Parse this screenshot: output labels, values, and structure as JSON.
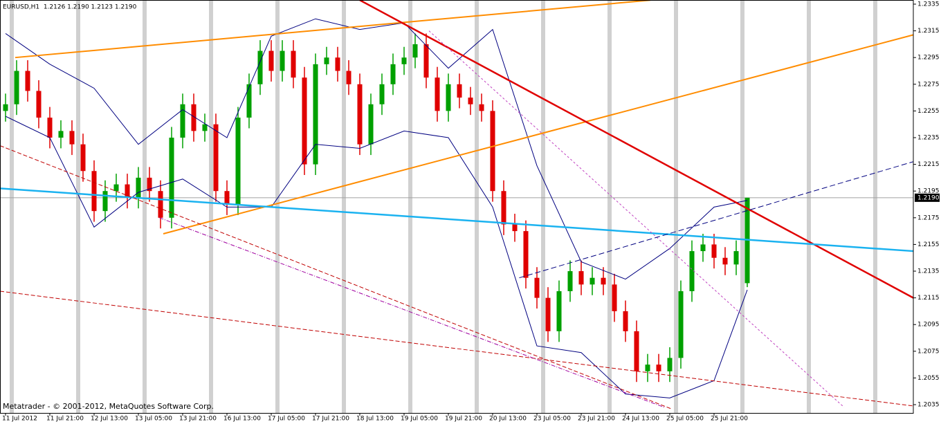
{
  "chart_data": {
    "type": "candlestick",
    "title": "EURUSD,H1  1.2126 1.2190 1.2123 1.2190",
    "watermark": "Metatrader - © 2001-2012, MetaQuotes Software Corp.",
    "up_color": "#00a000",
    "down_color": "#e00000",
    "open": [
      1.2255,
      1.226,
      1.2285,
      1.227,
      1.225,
      1.2235,
      1.224,
      1.223,
      1.221,
      1.218,
      1.2195,
      1.22,
      1.219,
      1.2205,
      1.2195,
      1.2175,
      1.2235,
      1.226,
      1.224,
      1.2245,
      1.2195,
      1.2185,
      1.225,
      1.2275,
      1.23,
      1.2285,
      1.23,
      1.228,
      1.2215,
      1.229,
      1.2295,
      1.2285,
      1.2275,
      1.223,
      1.226,
      1.2275,
      1.229,
      1.2295,
      1.2305,
      1.228,
      1.2255,
      1.2275,
      1.2265,
      1.226,
      1.2255,
      1.2195,
      1.217,
      1.2165,
      1.213,
      1.2115,
      1.209,
      1.212,
      1.2135,
      1.2125,
      1.213,
      1.2125,
      1.2105,
      1.209,
      1.206,
      1.2065,
      1.206,
      1.207,
      1.212,
      1.215,
      1.2155,
      1.2145,
      1.214,
      1.2126
    ],
    "high": [
      1.2268,
      1.2293,
      1.2293,
      1.2278,
      1.2258,
      1.2248,
      1.2248,
      1.2238,
      1.2218,
      1.2203,
      1.2208,
      1.2208,
      1.2213,
      1.2213,
      1.2203,
      1.2243,
      1.2268,
      1.2268,
      1.2253,
      1.2253,
      1.2203,
      1.2258,
      1.2283,
      1.2308,
      1.2308,
      1.2308,
      1.2308,
      1.2288,
      1.2298,
      1.2303,
      1.2303,
      1.2293,
      1.2283,
      1.2268,
      1.2283,
      1.2298,
      1.2303,
      1.2313,
      1.2313,
      1.2288,
      1.2283,
      1.2283,
      1.2273,
      1.2268,
      1.2263,
      1.2203,
      1.2178,
      1.2173,
      1.2138,
      1.2123,
      1.2128,
      1.2143,
      1.2143,
      1.2138,
      1.2138,
      1.2133,
      1.2113,
      1.2098,
      1.2073,
      1.2073,
      1.2078,
      1.2128,
      1.2158,
      1.2163,
      1.2163,
      1.2153,
      1.2158,
      1.219
    ],
    "low": [
      1.2247,
      1.2252,
      1.2262,
      1.2242,
      1.2227,
      1.2227,
      1.2222,
      1.2202,
      1.2172,
      1.2172,
      1.2187,
      1.2182,
      1.2182,
      1.2187,
      1.2167,
      1.2167,
      1.2227,
      1.2232,
      1.2232,
      1.2187,
      1.2177,
      1.2177,
      1.2242,
      1.2267,
      1.2277,
      1.2277,
      1.2272,
      1.2207,
      1.2207,
      1.2282,
      1.2277,
      1.2267,
      1.2222,
      1.2222,
      1.2252,
      1.2267,
      1.2282,
      1.2287,
      1.2272,
      1.2247,
      1.2247,
      1.2257,
      1.2252,
      1.2247,
      1.2187,
      1.2162,
      1.2157,
      1.2122,
      1.2107,
      1.2082,
      1.2082,
      1.2112,
      1.2117,
      1.2117,
      1.2117,
      1.2097,
      1.2082,
      1.2052,
      1.2052,
      1.2052,
      1.2052,
      1.2062,
      1.2112,
      1.2142,
      1.2137,
      1.2132,
      1.2132,
      1.2123
    ],
    "close": [
      1.226,
      1.2285,
      1.227,
      1.225,
      1.2235,
      1.224,
      1.223,
      1.221,
      1.218,
      1.2195,
      1.22,
      1.219,
      1.2205,
      1.2195,
      1.2175,
      1.2235,
      1.226,
      1.224,
      1.2245,
      1.2195,
      1.2185,
      1.225,
      1.2275,
      1.23,
      1.2285,
      1.23,
      1.228,
      1.2215,
      1.229,
      1.2295,
      1.2285,
      1.2275,
      1.223,
      1.226,
      1.2275,
      1.229,
      1.2295,
      1.2305,
      1.228,
      1.2255,
      1.2275,
      1.2265,
      1.226,
      1.2255,
      1.2195,
      1.217,
      1.2165,
      1.213,
      1.2115,
      1.209,
      1.212,
      1.2135,
      1.2125,
      1.213,
      1.2125,
      1.2105,
      1.209,
      1.206,
      1.2065,
      1.206,
      1.207,
      1.212,
      1.215,
      1.2155,
      1.2145,
      1.214,
      1.215,
      1.219
    ],
    "bands": {
      "color": "#000080",
      "x": [
        0,
        4,
        8,
        12,
        16,
        20,
        24,
        28,
        32,
        36,
        40,
        44,
        48,
        52,
        56,
        60,
        64,
        67
      ],
      "upper": [
        1.2313,
        1.229,
        1.2272,
        1.223,
        1.2256,
        1.2235,
        1.2311,
        1.2324,
        1.2316,
        1.2321,
        1.2287,
        1.2316,
        1.2214,
        1.2142,
        1.2129,
        1.2152,
        1.2183,
        1.2188
      ],
      "lower": [
        1.2251,
        1.2235,
        1.2168,
        1.2194,
        1.2204,
        1.2183,
        1.2183,
        1.223,
        1.2227,
        1.224,
        1.2235,
        1.2183,
        1.2079,
        1.2074,
        1.2043,
        1.204,
        1.2053,
        1.2121
      ]
    },
    "trendlines": [
      {
        "x": [
          0.875,
          58.25
        ],
        "y": [
          1.2295,
          1.2338
        ],
        "color": "#ff8c00",
        "width": 2,
        "dash": "none"
      },
      {
        "x": [
          14.25,
          82
        ],
        "y": [
          1.2163,
          1.2312
        ],
        "color": "#ff8c00",
        "width": 2,
        "dash": "none"
      },
      {
        "x": [
          32,
          82
        ],
        "y": [
          1.2338,
          1.2115
        ],
        "color": "#e00000",
        "width": 2.5,
        "dash": "none"
      },
      {
        "x": [
          -0.5,
          82
        ],
        "y": [
          1.2197,
          1.215
        ],
        "color": "#1ab2f0",
        "width": 2.5,
        "dash": "none"
      },
      {
        "x": [
          -0.5,
          82
        ],
        "y": [
          1.212,
          1.2034
        ],
        "color": "#c00000",
        "width": 1,
        "dash": "6,3"
      },
      {
        "x": [
          -0.5,
          60.1
        ],
        "y": [
          1.2229,
          1.2032
        ],
        "color": "#c00000",
        "width": 1,
        "dash": "6,3"
      },
      {
        "x": [
          13.9,
          59.5
        ],
        "y": [
          1.2175,
          1.2033
        ],
        "color": "#a000a0",
        "width": 1,
        "dash": "6,2,1,2"
      },
      {
        "x": [
          38.25,
          75.75
        ],
        "y": [
          1.2315,
          1.2033
        ],
        "color": "#c040c0",
        "width": 1,
        "dash": "3,3"
      },
      {
        "x": [
          46.4,
          82
        ],
        "y": [
          1.213,
          1.2217
        ],
        "color": "#000080",
        "width": 1,
        "dash": "8,4"
      }
    ],
    "current_price": {
      "value": 1.219,
      "label": "1.2190"
    },
    "xlim": [
      -0.5,
      82
    ],
    "xticks": [
      {
        "value": 0,
        "label": "11 Jul 2012"
      },
      {
        "value": 4,
        "label": "11 Jul 21:00"
      },
      {
        "value": 8,
        "label": "12 Jul 13:00"
      },
      {
        "value": 12,
        "label": "13 Jul 05:00"
      },
      {
        "value": 16,
        "label": "13 Jul 21:00"
      },
      {
        "value": 20,
        "label": "16 Jul 13:00"
      },
      {
        "value": 24,
        "label": "17 Jul 05:00"
      },
      {
        "value": 28,
        "label": "17 Jul 21:00"
      },
      {
        "value": 32,
        "label": "18 Jul 13:00"
      },
      {
        "value": 36,
        "label": "19 Jul 05:00"
      },
      {
        "value": 40,
        "label": "19 Jul 21:00"
      },
      {
        "value": 44,
        "label": "20 Jul 13:00"
      },
      {
        "value": 48,
        "label": "23 Jul 05:00"
      },
      {
        "value": 52,
        "label": "23 Jul 21:00"
      },
      {
        "value": 56,
        "label": "24 Jul 13:00"
      },
      {
        "value": 60,
        "label": "25 Jul 05:00"
      },
      {
        "value": 64,
        "label": "25 Jul 21:00"
      }
    ],
    "ylim": [
      1.20288,
      1.23381
    ],
    "yticks": [
      1.2035,
      1.2055,
      1.2075,
      1.2095,
      1.2115,
      1.2135,
      1.2155,
      1.2175,
      1.2195,
      1.2215,
      1.2235,
      1.2255,
      1.2275,
      1.2295,
      1.2315,
      1.2335
    ]
  }
}
